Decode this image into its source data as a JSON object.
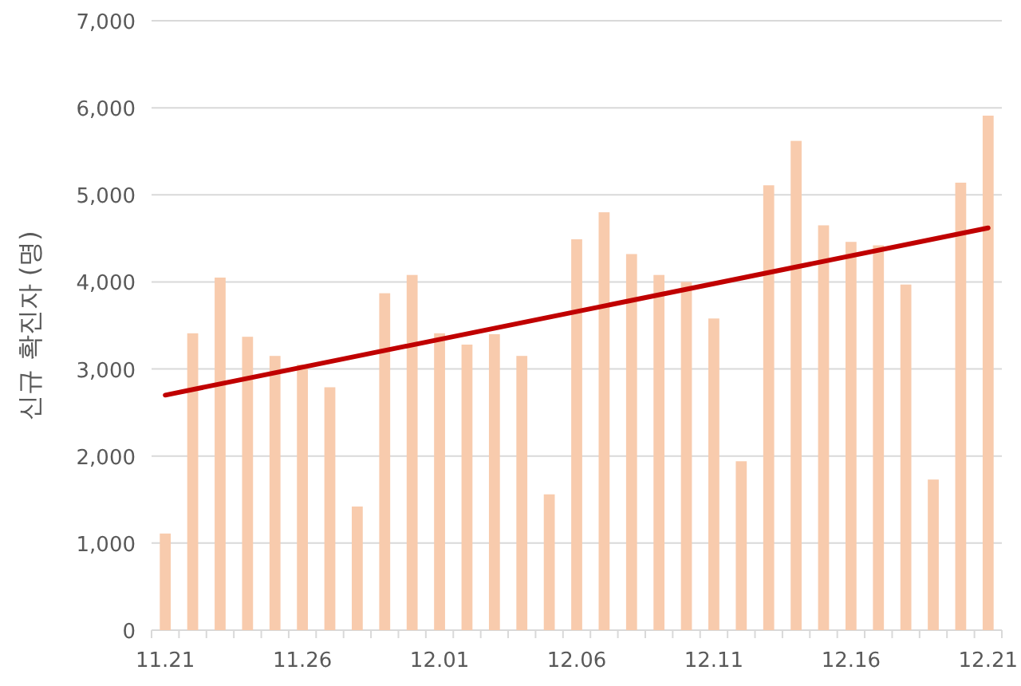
{
  "chart_data": {
    "type": "bar",
    "ylabel": "신규 확진자 (명)",
    "categories": [
      "11.21",
      null,
      null,
      null,
      null,
      "11.26",
      null,
      null,
      null,
      null,
      "12.01",
      null,
      null,
      null,
      null,
      "12.06",
      null,
      null,
      null,
      null,
      "12.11",
      null,
      null,
      null,
      null,
      "12.16",
      null,
      null,
      null,
      null,
      "12.21"
    ],
    "series": [
      {
        "color": "#f8cbad",
        "values": [
          1110,
          3410,
          4050,
          3370,
          3150,
          3050,
          2790,
          1420,
          3870,
          4080,
          3410,
          3280,
          3400,
          3150,
          1560,
          4490,
          4800,
          4320,
          4080,
          4000,
          3580,
          1940,
          5110,
          5620,
          4650,
          4460,
          4420,
          3970,
          1730,
          5140,
          5910
        ]
      },
      {
        "type": "line",
        "color": "#c00000",
        "x": [
          "11.21",
          "12.21"
        ],
        "values": [
          2700,
          4620
        ]
      }
    ],
    "ylim": [
      0,
      7000
    ],
    "yticks": [
      {
        "value": 0,
        "label": "0"
      },
      {
        "value": 1000,
        "label": "1,000"
      },
      {
        "value": 2000,
        "label": "2,000"
      },
      {
        "value": 3000,
        "label": "3,000"
      },
      {
        "value": 4000,
        "label": "4,000"
      },
      {
        "value": 5000,
        "label": "5,000"
      },
      {
        "value": 6000,
        "label": "6,000"
      },
      {
        "value": 7000,
        "label": "7,000"
      }
    ],
    "grid": "y"
  }
}
